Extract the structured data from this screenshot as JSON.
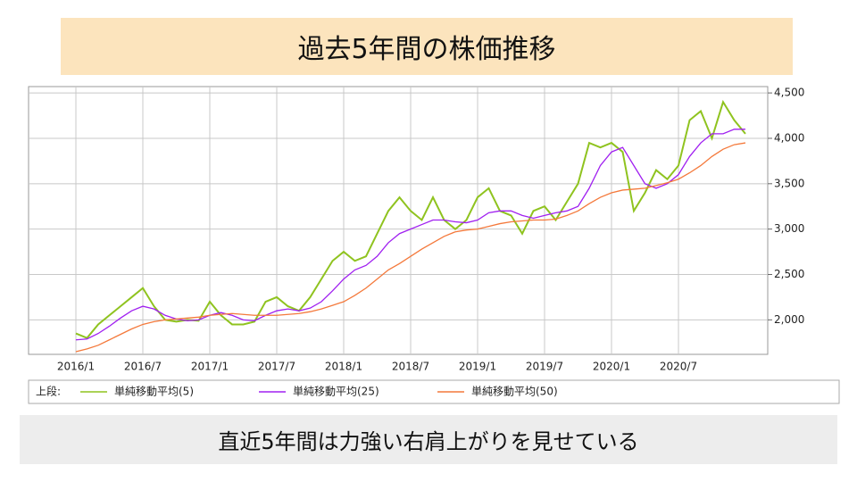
{
  "chart_data": {
    "type": "line",
    "title": "過去5年間の株価推移",
    "caption": "直近5年間は力強い右肩上がりを見せている",
    "legend_prefix": "上段:",
    "categories": [
      "2016/1",
      null,
      null,
      null,
      null,
      null,
      "2016/7",
      null,
      null,
      null,
      null,
      null,
      "2017/1",
      null,
      null,
      null,
      null,
      null,
      "2017/7",
      null,
      null,
      null,
      null,
      null,
      "2018/1",
      null,
      null,
      null,
      null,
      null,
      "2018/7",
      null,
      null,
      null,
      null,
      null,
      "2019/1",
      null,
      null,
      null,
      null,
      null,
      "2019/7",
      null,
      null,
      null,
      null,
      null,
      "2020/1",
      null,
      null,
      null,
      null,
      null,
      "2020/7",
      null,
      null,
      null,
      null,
      null,
      null
    ],
    "series": [
      {
        "name": "単純移動平均(5)",
        "color": "#8fc31f",
        "values": [
          1850,
          1800,
          1950,
          2050,
          2150,
          2250,
          2350,
          2150,
          2000,
          1980,
          2000,
          1990,
          2200,
          2050,
          1950,
          1950,
          1980,
          2200,
          2250,
          2150,
          2100,
          2250,
          2450,
          2650,
          2750,
          2650,
          2700,
          2950,
          3200,
          3350,
          3200,
          3100,
          3350,
          3100,
          3000,
          3100,
          3350,
          3450,
          3200,
          3150,
          2950,
          3200,
          3250,
          3100,
          3300,
          3500,
          3950,
          3900,
          3950,
          3850,
          3200,
          3400,
          3650,
          3550,
          3700,
          4200,
          4300,
          4000,
          4400,
          4200,
          4050
        ]
      },
      {
        "name": "単純移動平均(25)",
        "color": "#a020f0",
        "values": [
          1780,
          1790,
          1850,
          1930,
          2020,
          2100,
          2150,
          2120,
          2050,
          2010,
          1990,
          2000,
          2050,
          2080,
          2050,
          2000,
          1990,
          2050,
          2100,
          2120,
          2100,
          2130,
          2200,
          2320,
          2450,
          2550,
          2600,
          2700,
          2850,
          2950,
          3000,
          3050,
          3100,
          3100,
          3080,
          3070,
          3100,
          3180,
          3200,
          3200,
          3150,
          3120,
          3150,
          3180,
          3200,
          3250,
          3450,
          3700,
          3850,
          3900,
          3700,
          3500,
          3450,
          3500,
          3600,
          3800,
          3950,
          4050,
          4050,
          4100,
          4100
        ]
      },
      {
        "name": "単純移動平均(50)",
        "color": "#f4793b",
        "values": [
          1650,
          1680,
          1720,
          1780,
          1840,
          1900,
          1950,
          1980,
          2000,
          2010,
          2020,
          2030,
          2050,
          2060,
          2070,
          2060,
          2050,
          2050,
          2050,
          2060,
          2070,
          2090,
          2120,
          2160,
          2200,
          2270,
          2350,
          2450,
          2550,
          2620,
          2700,
          2780,
          2850,
          2920,
          2970,
          2990,
          3000,
          3030,
          3060,
          3080,
          3090,
          3100,
          3100,
          3110,
          3150,
          3200,
          3280,
          3350,
          3400,
          3430,
          3440,
          3450,
          3480,
          3510,
          3550,
          3620,
          3700,
          3800,
          3880,
          3930,
          3950
        ]
      }
    ],
    "ylim": [
      1620,
      4570
    ],
    "yticks": [
      {
        "value": 2000,
        "label": "2,000"
      },
      {
        "value": 2500,
        "label": "2,500"
      },
      {
        "value": 3000,
        "label": "3,000"
      },
      {
        "value": 3500,
        "label": "3,500"
      },
      {
        "value": 4000,
        "label": "4,000"
      },
      {
        "value": 4500,
        "label": "4,500"
      }
    ],
    "grid": true
  }
}
